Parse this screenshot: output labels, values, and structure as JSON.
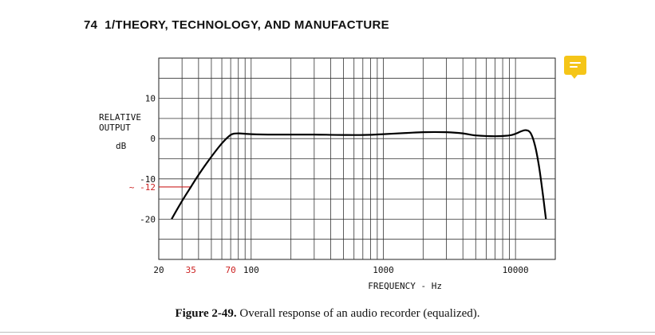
{
  "header": {
    "page_number": "74",
    "chapter_title": "1/THEORY, TECHNOLOGY, AND MANUFACTURE"
  },
  "note_icon": {
    "name": "comment-icon",
    "color": "#f5c518"
  },
  "chart_data": {
    "type": "line",
    "ylabel_lines": [
      "RELATIVE",
      "OUTPUT"
    ],
    "yunit": "dB",
    "xlabel": "FREQUENCY - Hz",
    "xscale": "log",
    "xlim": [
      20,
      20000
    ],
    "ylim": [
      -30,
      20
    ],
    "grid": true,
    "y_ticks": [
      {
        "value": 10,
        "label": "10"
      },
      {
        "value": 0,
        "label": "0"
      },
      {
        "value": -10,
        "label": "-10"
      },
      {
        "value": -20,
        "label": "-20"
      }
    ],
    "x_ticks": [
      {
        "value": 20,
        "label": "20"
      },
      {
        "value": 100,
        "label": "100"
      },
      {
        "value": 1000,
        "label": "1000"
      },
      {
        "value": 10000,
        "label": "10000"
      }
    ],
    "annotations": [
      {
        "axis": "x",
        "value": 35,
        "label": "35",
        "color": "#cc2222"
      },
      {
        "axis": "x",
        "value": 70,
        "label": "70",
        "color": "#cc2222"
      },
      {
        "axis": "y",
        "value": -12,
        "label": "~ -12",
        "color": "#cc2222",
        "x_end": 35
      }
    ],
    "series": [
      {
        "x": [
          25,
          30,
          35,
          40,
          50,
          60,
          70,
          80,
          100,
          150,
          200,
          300,
          500,
          700,
          1000,
          1500,
          2000,
          3000,
          4000,
          5000,
          7000,
          9000,
          10000,
          11000,
          12000,
          13000,
          14000,
          15000,
          16000,
          17000
        ],
        "y": [
          -20,
          -15.5,
          -12,
          -9,
          -4.5,
          -1.2,
          0.9,
          1.3,
          1.1,
          1.0,
          1.0,
          1.0,
          0.9,
          0.9,
          1.1,
          1.4,
          1.6,
          1.6,
          1.3,
          0.8,
          0.6,
          0.8,
          1.2,
          1.8,
          2.1,
          1.4,
          -1.5,
          -6.5,
          -13,
          -20
        ]
      }
    ]
  },
  "caption": {
    "label": "Figure 2-49.",
    "text": "Overall response of an audio recorder (equalized)."
  }
}
